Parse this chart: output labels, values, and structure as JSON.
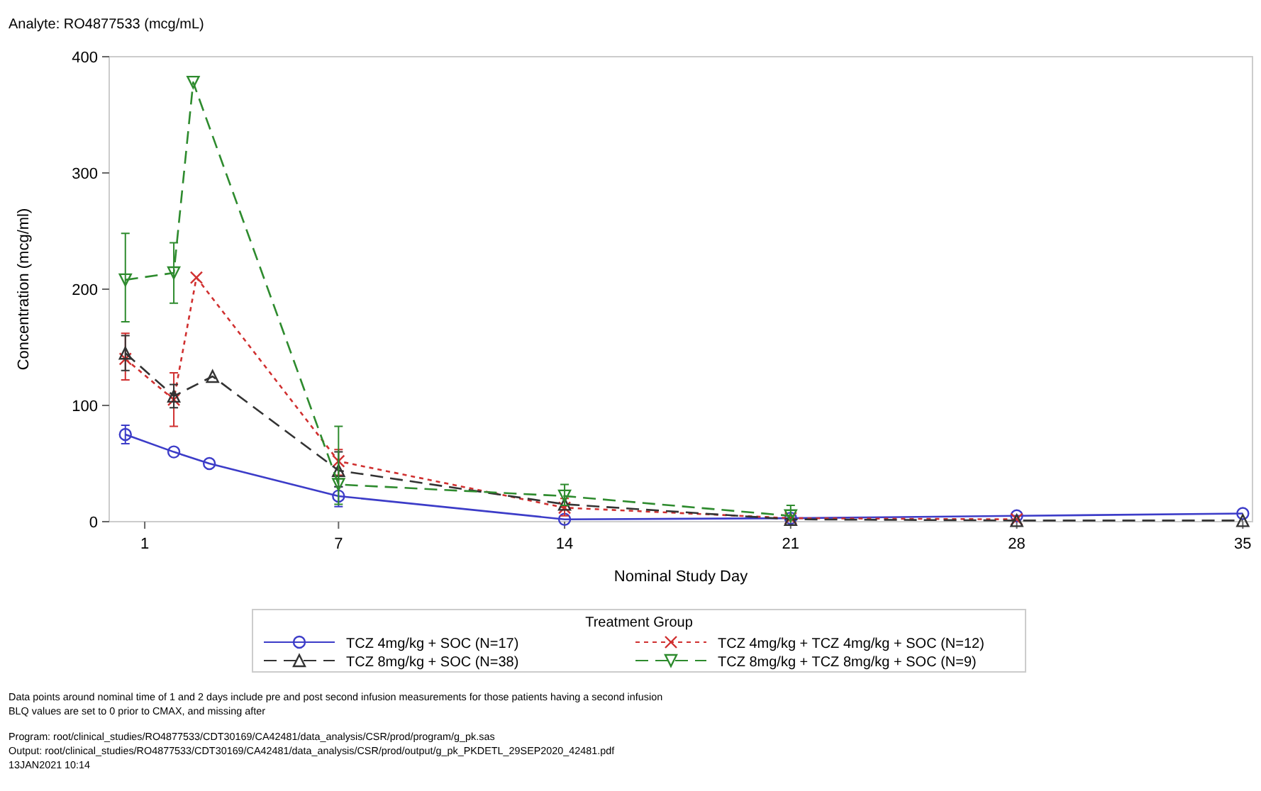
{
  "chart_data": {
    "type": "line",
    "title": "Analyte: RO4877533 (mcg/mL)",
    "xlabel": "Nominal Study Day",
    "ylabel": "Concentration (mcg/ml)",
    "legend_title": "Treatment Group",
    "legend": "bottom",
    "grid": false,
    "xlim": [
      -0.1,
      35.3
    ],
    "xticks": [
      1,
      7,
      14,
      21,
      28,
      35
    ],
    "ylim": [
      0,
      400
    ],
    "yticks": [
      0,
      100,
      200,
      300,
      400
    ],
    "series": [
      {
        "name": "TCZ 4mg/kg + SOC (N=17)",
        "color": "#3c3cc8",
        "marker": "circle",
        "line_style": "solid",
        "x": [
          0.4,
          1.9,
          3,
          7,
          14,
          21,
          28,
          35
        ],
        "values": [
          75,
          60,
          50,
          22,
          2,
          3,
          5,
          7
        ],
        "errors": [
          [
            67,
            83
          ],
          null,
          null,
          [
            13,
            30
          ],
          null,
          null,
          null,
          null
        ]
      },
      {
        "name": "TCZ 4mg/kg + TCZ 4mg/kg + SOC (N=12)",
        "color": "#d03030",
        "marker": "cross",
        "line_style": "dotted",
        "x": [
          0.4,
          1.9,
          2.6,
          7,
          14,
          21,
          28
        ],
        "values": [
          140,
          105,
          210,
          52,
          12,
          3,
          2
        ],
        "errors": [
          [
            122,
            162
          ],
          [
            82,
            128
          ],
          null,
          [
            40,
            62
          ],
          [
            5,
            20
          ],
          null,
          null
        ]
      },
      {
        "name": "TCZ 8mg/kg + SOC (N=38)",
        "color": "#333333",
        "marker": "triangle",
        "line_style": "dashed",
        "x": [
          0.4,
          1.9,
          3.1,
          7,
          14,
          21,
          28,
          35
        ],
        "values": [
          145,
          108,
          125,
          44,
          15,
          2,
          1,
          1
        ],
        "errors": [
          [
            130,
            160
          ],
          [
            98,
            118
          ],
          null,
          [
            30,
            60
          ],
          null,
          null,
          null,
          null
        ]
      },
      {
        "name": "TCZ 8mg/kg + TCZ 8mg/kg + SOC (N=9)",
        "color": "#2e8b2e",
        "marker": "triangle-down",
        "line_style": "dashed",
        "x": [
          0.4,
          1.9,
          2.5,
          7,
          14,
          21
        ],
        "values": [
          208,
          214,
          378,
          32,
          22,
          5
        ],
        "errors": [
          [
            172,
            248
          ],
          [
            188,
            240
          ],
          null,
          [
            15,
            82
          ],
          [
            14,
            32
          ],
          [
            5,
            14
          ]
        ]
      }
    ],
    "annotations": [
      "Data points around nominal time of 1 and 2 days include pre and post second infusion measurements for those patients having a second infusion",
      "BLQ values are set to 0 prior to CMAX, and missing after",
      "Program: root/clinical_studies/RO4877533/CDT30169/CA42481/data_analysis/CSR/prod/program/g_pk.sas",
      "Output: root/clinical_studies/RO4877533/CDT30169/CA42481/data_analysis/CSR/prod/output/g_pk_PKDETL_29SEP2020_42481.pdf",
      "13JAN2021 10:14"
    ]
  }
}
